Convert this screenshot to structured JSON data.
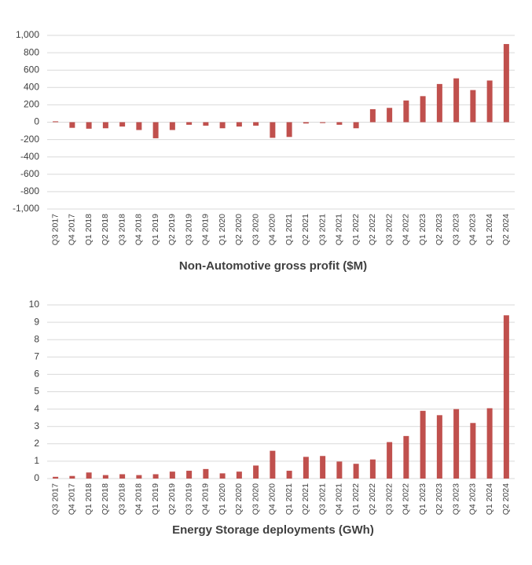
{
  "chart_data": [
    {
      "type": "bar",
      "title": "Non-Automotive gross profit ($M)",
      "categories": [
        "Q3 2017",
        "Q4 2017",
        "Q1 2018",
        "Q2 2018",
        "Q3 2018",
        "Q4 2018",
        "Q1 2019",
        "Q2 2019",
        "Q3 2019",
        "Q4 2019",
        "Q1 2020",
        "Q2 2020",
        "Q3 2020",
        "Q4 2020",
        "Q1 2021",
        "Q2 2021",
        "Q3 2021",
        "Q4 2021",
        "Q1 2022",
        "Q2 2022",
        "Q3 2022",
        "Q4 2022",
        "Q1 2023",
        "Q2 2023",
        "Q3 2023",
        "Q4 2023",
        "Q1 2024",
        "Q2 2024"
      ],
      "values": [
        10,
        -65,
        -75,
        -70,
        -50,
        -90,
        -185,
        -90,
        -30,
        -40,
        -70,
        -50,
        -40,
        -180,
        -170,
        -15,
        -10,
        -30,
        -70,
        150,
        165,
        250,
        300,
        440,
        505,
        370,
        480,
        900
      ],
      "color": "#c0504d",
      "ylim": [
        -1000,
        1000
      ],
      "yticks": [
        {
          "value": -1000,
          "label": "-1,000"
        },
        -800,
        -600,
        -400,
        -200,
        0,
        200,
        400,
        600,
        800,
        {
          "value": 1000,
          "label": "1,000"
        }
      ],
      "grid": true
    },
    {
      "type": "bar",
      "title": "Energy Storage deployments (GWh)",
      "categories": [
        "Q3 2017",
        "Q4 2017",
        "Q1 2018",
        "Q2 2018",
        "Q3 2018",
        "Q4 2018",
        "Q1 2019",
        "Q2 2019",
        "Q3 2019",
        "Q4 2019",
        "Q1 2020",
        "Q2 2020",
        "Q3 2020",
        "Q4 2020",
        "Q1 2021",
        "Q2 2021",
        "Q3 2021",
        "Q4 2021",
        "Q1 2022",
        "Q2 2022",
        "Q3 2022",
        "Q4 2022",
        "Q1 2023",
        "Q2 2023",
        "Q3 2023",
        "Q4 2023",
        "Q1 2024",
        "Q2 2024"
      ],
      "values": [
        0.1,
        0.15,
        0.35,
        0.2,
        0.25,
        0.2,
        0.25,
        0.4,
        0.45,
        0.55,
        0.3,
        0.4,
        0.75,
        1.6,
        0.45,
        1.25,
        1.3,
        0.98,
        0.85,
        1.1,
        2.1,
        2.45,
        3.9,
        3.65,
        4.0,
        3.2,
        4.05,
        9.4
      ],
      "color": "#c0504d",
      "ylim": [
        0,
        10
      ],
      "yticks": [
        0,
        1,
        2,
        3,
        4,
        5,
        6,
        7,
        8,
        9,
        10
      ],
      "grid": true
    }
  ]
}
